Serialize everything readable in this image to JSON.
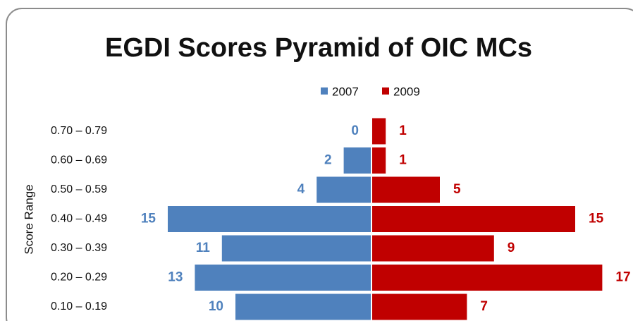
{
  "chart_data": {
    "type": "pyramid",
    "title": "EGDI Scores Pyramid of OIC MCs",
    "y_label": "Score Range",
    "categories": [
      "0.70 – 0.79",
      "0.60 – 0.69",
      "0.50 – 0.59",
      "0.40 – 0.49",
      "0.30 – 0.39",
      "0.20 – 0.29",
      "0.10 – 0.19"
    ],
    "series": [
      {
        "name": "2007",
        "color": "#4f81bd",
        "values": [
          0,
          2,
          4,
          15,
          11,
          13,
          10
        ]
      },
      {
        "name": "2009",
        "color": "#c00000",
        "values": [
          1,
          1,
          5,
          15,
          9,
          17,
          7
        ]
      }
    ],
    "legend": "top"
  }
}
